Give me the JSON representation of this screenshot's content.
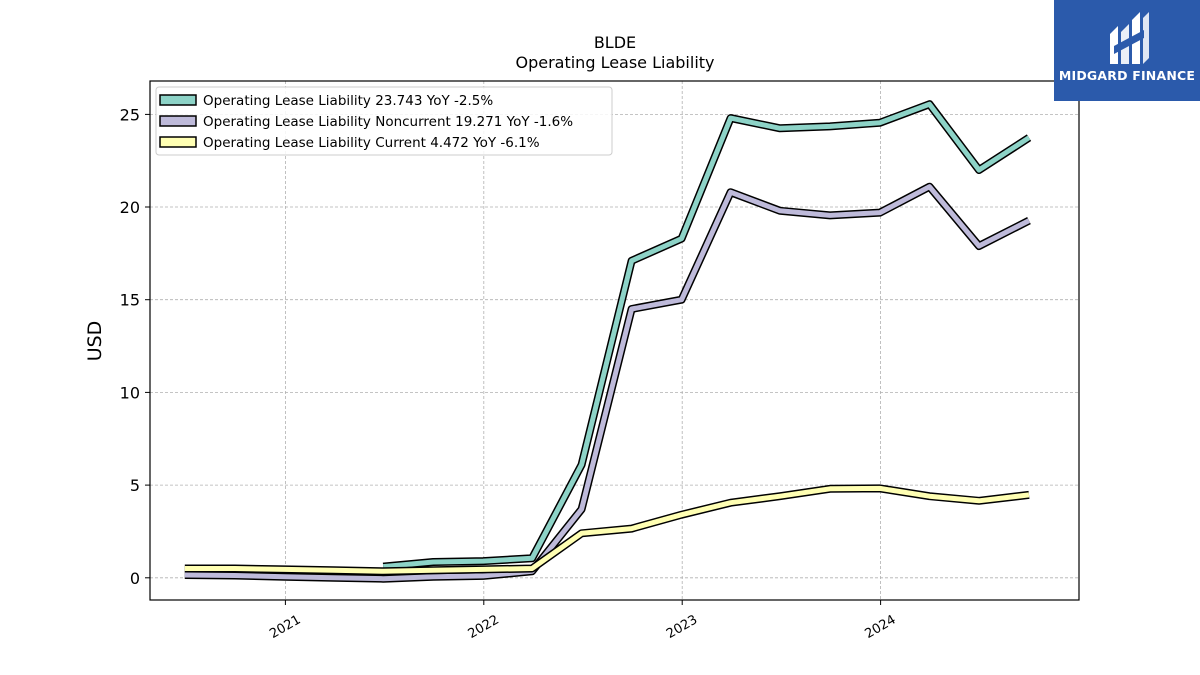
{
  "logo": {
    "text": "MIDGARD FINANCE",
    "icon": "midgard-m-icon"
  },
  "chart_data": {
    "type": "line",
    "title": "BLDE",
    "subtitle": "Operating Lease Liability",
    "ylabel": "USD",
    "xlabel": "",
    "ylim": [
      -1.2,
      26.8
    ],
    "xlim": [
      "2020-04-27",
      "2024-12-31"
    ],
    "yticks": [
      0,
      5,
      10,
      15,
      20,
      25
    ],
    "xticks": [
      {
        "label": "2021",
        "date": "2021-01-01"
      },
      {
        "label": "2022",
        "date": "2022-01-01"
      },
      {
        "label": "2023",
        "date": "2023-01-01"
      },
      {
        "label": "2024",
        "date": "2024-01-01"
      }
    ],
    "grid": true,
    "legend_position": "top-left",
    "series": [
      {
        "name": "Operating Lease Liability",
        "legend_label": "Operating Lease Liability  23.743 YoY -2.5%",
        "color": "#8dd3c7",
        "points": [
          [
            "2021-06-30",
            0.6
          ],
          [
            "2021-09-30",
            0.85
          ],
          [
            "2021-12-31",
            0.9
          ],
          [
            "2022-03-31",
            1.05
          ],
          [
            "2022-06-30",
            6.1
          ],
          [
            "2022-09-30",
            17.1
          ],
          [
            "2022-12-31",
            18.3
          ],
          [
            "2023-03-31",
            24.8
          ],
          [
            "2023-06-30",
            24.25
          ],
          [
            "2023-09-30",
            24.35
          ],
          [
            "2023-12-31",
            24.55
          ],
          [
            "2024-03-31",
            25.55
          ],
          [
            "2024-06-30",
            22.0
          ],
          [
            "2024-09-30",
            23.743
          ]
        ]
      },
      {
        "name": "Operating Lease Liability Noncurrent",
        "legend_label": "Operating Lease Liability Noncurrent  19.271 YoY -1.6%",
        "color": "#bebada",
        "points": [
          [
            "2020-06-30",
            0.15
          ],
          [
            "2020-09-30",
            0.12
          ],
          [
            "2020-12-31",
            0.05
          ],
          [
            "2021-03-31",
            0.0
          ],
          [
            "2021-06-30",
            -0.05
          ],
          [
            "2021-09-30",
            0.05
          ],
          [
            "2021-12-31",
            0.1
          ],
          [
            "2022-03-31",
            0.35
          ],
          [
            "2022-06-30",
            3.7
          ],
          [
            "2022-09-30",
            14.5
          ],
          [
            "2022-12-31",
            15.0
          ],
          [
            "2023-03-31",
            20.8
          ],
          [
            "2023-06-30",
            19.8
          ],
          [
            "2023-09-30",
            19.55
          ],
          [
            "2023-12-31",
            19.7
          ],
          [
            "2024-03-31",
            21.1
          ],
          [
            "2024-06-30",
            17.9
          ],
          [
            "2024-09-30",
            19.271
          ]
        ]
      },
      {
        "name": "Operating Lease Liability Current",
        "legend_label": "Operating Lease Liability Current  4.472 YoY -6.1%",
        "color": "#ffffb3",
        "points": [
          [
            "2020-06-30",
            0.5
          ],
          [
            "2020-09-30",
            0.5
          ],
          [
            "2020-12-31",
            0.45
          ],
          [
            "2021-03-31",
            0.4
          ],
          [
            "2021-06-30",
            0.35
          ],
          [
            "2021-09-30",
            0.4
          ],
          [
            "2021-12-31",
            0.45
          ],
          [
            "2022-03-31",
            0.5
          ],
          [
            "2022-06-30",
            2.4
          ],
          [
            "2022-09-30",
            2.65
          ],
          [
            "2022-12-31",
            3.4
          ],
          [
            "2023-03-31",
            4.05
          ],
          [
            "2023-06-30",
            4.4
          ],
          [
            "2023-09-30",
            4.8
          ],
          [
            "2023-12-31",
            4.82
          ],
          [
            "2024-03-31",
            4.4
          ],
          [
            "2024-06-30",
            4.15
          ],
          [
            "2024-09-30",
            4.472
          ]
        ]
      }
    ]
  }
}
